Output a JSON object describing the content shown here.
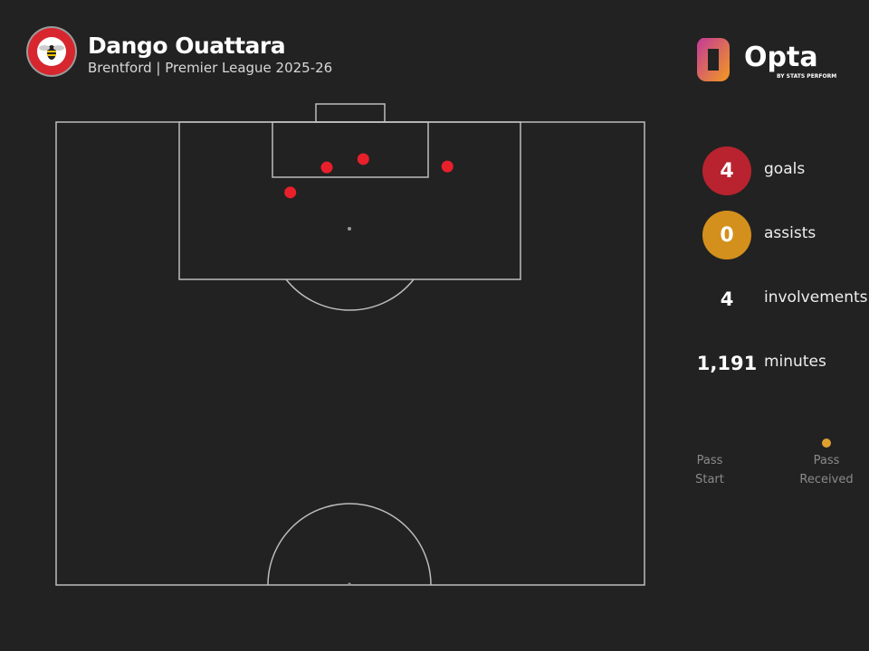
{
  "header": {
    "player": "Dango Ouattara",
    "subtitle": "Brentford | Premier League 2025-26",
    "club_badge": "brentford-crest",
    "brand": "Opta",
    "brand_sub": "BY STATS PERFORM"
  },
  "colors": {
    "background": "#222222",
    "goal": "#b8232f",
    "assist": "#d4901c",
    "shot_marker": "#e8202b",
    "pitch_lines": "#bdbdbd",
    "pass_line": "#e0a030"
  },
  "stats": [
    {
      "value": "4",
      "label": "goals"
    },
    {
      "value": "0",
      "label": "assists"
    },
    {
      "value": "4",
      "label": "involvements"
    },
    {
      "value": "1,191",
      "label": "minutes"
    }
  ],
  "legend": {
    "start": [
      "Pass",
      "Start"
    ],
    "end": [
      "Pass",
      "Received"
    ]
  },
  "chart_data": {
    "type": "scatter",
    "coordinate_system": "Opta 0-100 (x toward goal, y across pitch)",
    "goals": [
      {
        "x": 95.1,
        "y": 46.0
      },
      {
        "x": 96.0,
        "y": 52.2
      },
      {
        "x": 95.2,
        "y": 66.5
      },
      {
        "x": 92.4,
        "y": 39.8
      }
    ],
    "assists": []
  }
}
